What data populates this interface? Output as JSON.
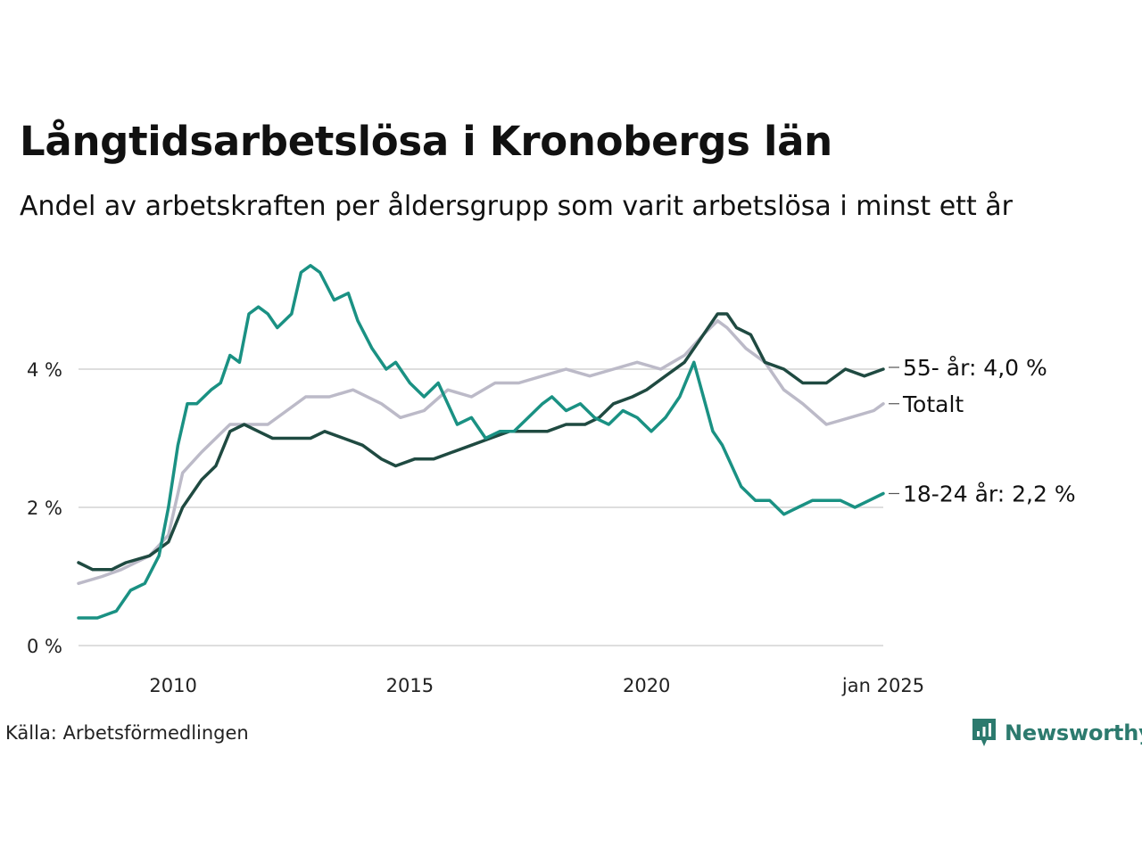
{
  "title": "Långtidsarbetslösa i Kronobergs län",
  "subtitle": "Andel av arbetskraften per åldersgrupp som varit arbetslösa i minst ett år",
  "source": "Källa: Arbetsförmedlingen",
  "brand": "Newsworthy",
  "colors": {
    "s55": "#1f4a41",
    "total": "#bcbac8",
    "s1824": "#1a9183",
    "grid": "#dedede",
    "brand": "#2c7a6e"
  },
  "chart_data": {
    "type": "line",
    "x_unit": "year (decimal)",
    "xlim": [
      2008.0,
      2025.0
    ],
    "ylim": [
      0,
      5.6
    ],
    "y_ticks": [
      0,
      2,
      4
    ],
    "y_tick_labels": [
      "0 %",
      "2 %",
      "4 %"
    ],
    "x_ticks": [
      2010,
      2015,
      2020,
      2025
    ],
    "x_tick_labels": [
      "2010",
      "2015",
      "2020",
      "jan 2025"
    ],
    "grid": "horizontal",
    "legend": "end-of-line labels",
    "series": [
      {
        "key": "total",
        "label": "Totalt",
        "x": [
          2008.0,
          2008.5,
          2008.9,
          2009.5,
          2009.9,
          2010.2,
          2010.6,
          2010.9,
          2011.2,
          2011.6,
          2012.0,
          2012.4,
          2012.8,
          2013.3,
          2013.8,
          2014.4,
          2014.8,
          2015.3,
          2015.8,
          2016.3,
          2016.8,
          2017.3,
          2017.8,
          2018.3,
          2018.8,
          2019.3,
          2019.8,
          2020.3,
          2020.8,
          2021.2,
          2021.5,
          2021.7,
          2022.1,
          2022.5,
          2022.9,
          2023.3,
          2023.8,
          2024.3,
          2024.8,
          2025.0
        ],
        "y": [
          0.9,
          1.0,
          1.1,
          1.3,
          1.6,
          2.5,
          2.8,
          3.0,
          3.2,
          3.2,
          3.2,
          3.4,
          3.6,
          3.6,
          3.7,
          3.5,
          3.3,
          3.4,
          3.7,
          3.6,
          3.8,
          3.8,
          3.9,
          4.0,
          3.9,
          4.0,
          4.1,
          4.0,
          4.2,
          4.5,
          4.7,
          4.6,
          4.3,
          4.1,
          3.7,
          3.5,
          3.2,
          3.3,
          3.4,
          3.5
        ]
      },
      {
        "key": "s55",
        "label": "55- år: 4,0 %",
        "x": [
          2008.0,
          2008.3,
          2008.7,
          2009.0,
          2009.5,
          2009.9,
          2010.2,
          2010.6,
          2010.9,
          2011.2,
          2011.5,
          2011.8,
          2012.1,
          2012.5,
          2012.9,
          2013.2,
          2013.6,
          2014.0,
          2014.4,
          2014.7,
          2015.1,
          2015.5,
          2015.9,
          2016.3,
          2016.7,
          2017.1,
          2017.5,
          2017.9,
          2018.3,
          2018.7,
          2019.0,
          2019.3,
          2019.7,
          2020.0,
          2020.4,
          2020.8,
          2021.2,
          2021.5,
          2021.7,
          2021.9,
          2022.2,
          2022.5,
          2022.9,
          2023.3,
          2023.8,
          2024.2,
          2024.6,
          2025.0
        ],
        "y": [
          1.2,
          1.1,
          1.1,
          1.2,
          1.3,
          1.5,
          2.0,
          2.4,
          2.6,
          3.1,
          3.2,
          3.1,
          3.0,
          3.0,
          3.0,
          3.1,
          3.0,
          2.9,
          2.7,
          2.6,
          2.7,
          2.7,
          2.8,
          2.9,
          3.0,
          3.1,
          3.1,
          3.1,
          3.2,
          3.2,
          3.3,
          3.5,
          3.6,
          3.7,
          3.9,
          4.1,
          4.5,
          4.8,
          4.8,
          4.6,
          4.5,
          4.1,
          4.0,
          3.8,
          3.8,
          4.0,
          3.9,
          4.0
        ]
      },
      {
        "key": "s1824",
        "label": "18-24 år: 2,2 %",
        "x": [
          2008.0,
          2008.4,
          2008.8,
          2009.1,
          2009.4,
          2009.7,
          2009.9,
          2010.1,
          2010.3,
          2010.5,
          2010.8,
          2011.0,
          2011.2,
          2011.4,
          2011.6,
          2011.8,
          2012.0,
          2012.2,
          2012.5,
          2012.7,
          2012.9,
          2013.1,
          2013.4,
          2013.7,
          2013.9,
          2014.2,
          2014.5,
          2014.7,
          2015.0,
          2015.3,
          2015.6,
          2015.8,
          2016.0,
          2016.3,
          2016.6,
          2016.9,
          2017.2,
          2017.5,
          2017.8,
          2018.0,
          2018.3,
          2018.6,
          2018.9,
          2019.2,
          2019.5,
          2019.8,
          2020.1,
          2020.4,
          2020.7,
          2021.0,
          2021.2,
          2021.4,
          2021.6,
          2021.8,
          2022.0,
          2022.3,
          2022.6,
          2022.9,
          2023.2,
          2023.5,
          2023.8,
          2024.1,
          2024.4,
          2024.7,
          2025.0
        ],
        "y": [
          0.4,
          0.4,
          0.5,
          0.8,
          0.9,
          1.3,
          2.0,
          2.9,
          3.5,
          3.5,
          3.7,
          3.8,
          4.2,
          4.1,
          4.8,
          4.9,
          4.8,
          4.6,
          4.8,
          5.4,
          5.5,
          5.4,
          5.0,
          5.1,
          4.7,
          4.3,
          4.0,
          4.1,
          3.8,
          3.6,
          3.8,
          3.5,
          3.2,
          3.3,
          3.0,
          3.1,
          3.1,
          3.3,
          3.5,
          3.6,
          3.4,
          3.5,
          3.3,
          3.2,
          3.4,
          3.3,
          3.1,
          3.3,
          3.6,
          4.1,
          3.6,
          3.1,
          2.9,
          2.6,
          2.3,
          2.1,
          2.1,
          1.9,
          2.0,
          2.1,
          2.1,
          2.1,
          2.0,
          2.1,
          2.2
        ]
      }
    ]
  }
}
